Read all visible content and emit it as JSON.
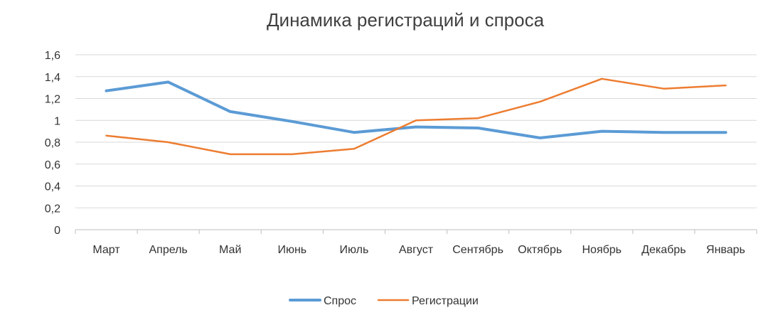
{
  "chart_data": {
    "type": "line",
    "title": "Динамика регистраций и спроса",
    "categories": [
      "Март",
      "Апрель",
      "Май",
      "Июнь",
      "Июль",
      "Август",
      "Сентябрь",
      "Октябрь",
      "Ноябрь",
      "Декабрь",
      "Январь"
    ],
    "series": [
      {
        "name": "Спрос",
        "color": "#5b9bd5",
        "values": [
          1.27,
          1.35,
          1.08,
          0.99,
          0.89,
          0.94,
          0.93,
          0.84,
          0.9,
          0.89,
          0.89
        ]
      },
      {
        "name": "Регистрации",
        "color": "#ed7d31",
        "values": [
          0.86,
          0.8,
          0.69,
          0.69,
          0.74,
          1.0,
          1.02,
          1.17,
          1.38,
          1.29,
          1.32
        ]
      }
    ],
    "ylim": [
      0,
      1.6
    ],
    "yticks": [
      "0",
      "0,2",
      "0,4",
      "0,6",
      "0,8",
      "1",
      "1,2",
      "1,4",
      "1,6"
    ],
    "grid": true,
    "legend": "bottom"
  }
}
